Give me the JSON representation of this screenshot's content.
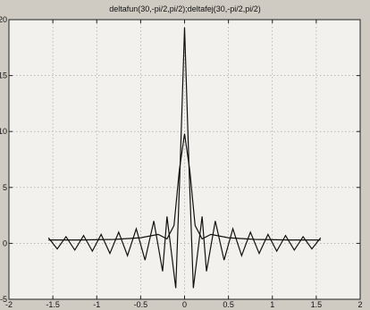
{
  "chart_data": {
    "type": "line",
    "title": "deltafun(30,-pi/2,pi/2);deltafej(30,-pi/2,pi/2)",
    "xlabel": "",
    "ylabel": "",
    "xlim": [
      -2,
      2
    ],
    "ylim": [
      -5,
      20
    ],
    "xticks": [
      "-2",
      "-1.5",
      "-1",
      "-0.5",
      "0",
      "0.5",
      "1",
      "1.5",
      "2"
    ],
    "yticks": [
      "-5",
      "0",
      "5",
      "10",
      "15",
      "20"
    ],
    "grid": true,
    "series": [
      {
        "x": [
          -1.55,
          -1.45,
          -1.35,
          -1.25,
          -1.15,
          -1.05,
          -0.95,
          -0.85,
          -0.75,
          -0.65,
          -0.55,
          -0.45,
          -0.35,
          -0.25,
          -0.2,
          -0.1,
          -0.05,
          0,
          0.05,
          0.1,
          0.2,
          0.25,
          0.35,
          0.45,
          0.55,
          0.65,
          0.75,
          0.85,
          0.95,
          1.05,
          1.15,
          1.25,
          1.35,
          1.45,
          1.55
        ],
        "y": [
          0.5,
          -0.5,
          0.6,
          -0.6,
          0.7,
          -0.7,
          0.8,
          -0.9,
          1.0,
          -1.1,
          1.3,
          -1.5,
          2.0,
          -2.5,
          2.4,
          -4.0,
          7.0,
          19.3,
          7.0,
          -4.0,
          2.4,
          -2.5,
          2.0,
          -1.5,
          1.3,
          -1.1,
          1.0,
          -0.9,
          0.8,
          -0.7,
          0.7,
          -0.6,
          0.6,
          -0.5,
          0.5
        ]
      },
      {
        "x": [
          -1.55,
          -1.2,
          -0.8,
          -0.5,
          -0.3,
          -0.2,
          -0.12,
          -0.06,
          0,
          0.06,
          0.12,
          0.2,
          0.3,
          0.5,
          0.8,
          1.2,
          1.55
        ],
        "y": [
          0.3,
          0.3,
          0.35,
          0.5,
          0.8,
          0.4,
          1.6,
          6.5,
          9.8,
          6.5,
          1.6,
          0.4,
          0.8,
          0.5,
          0.35,
          0.3,
          0.3
        ]
      }
    ]
  }
}
